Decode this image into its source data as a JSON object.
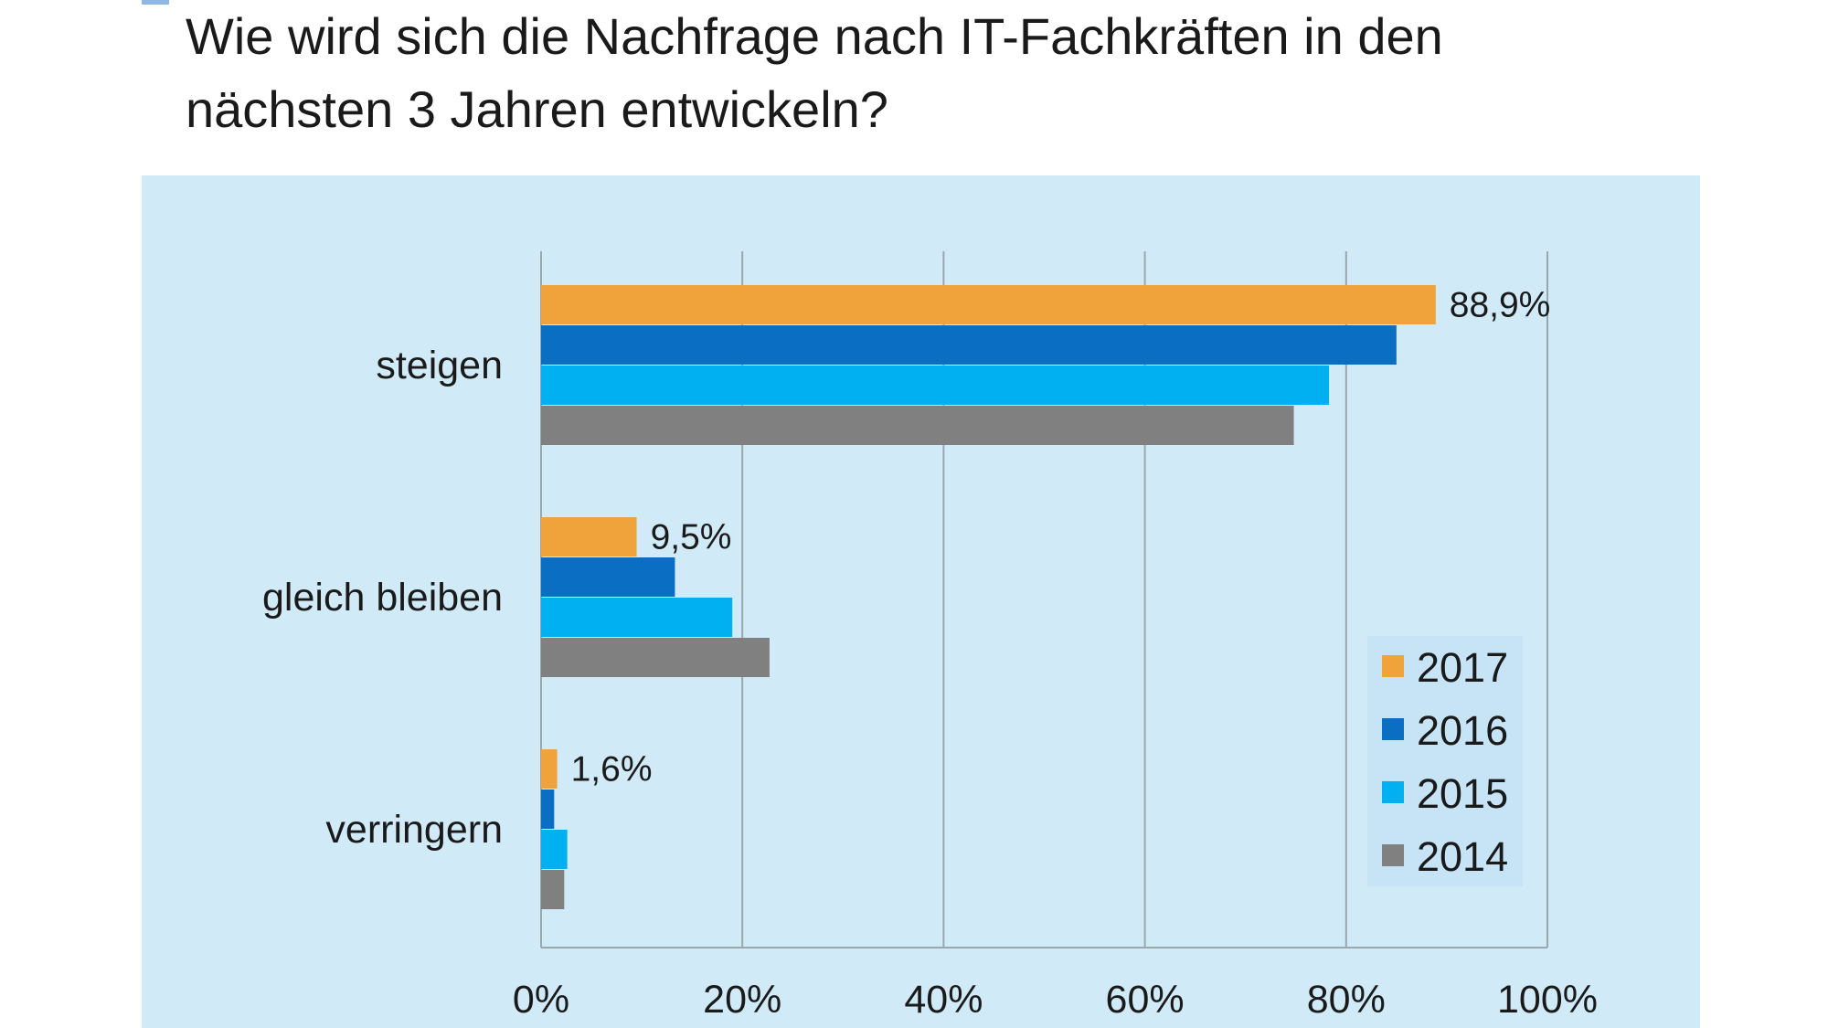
{
  "title_lines": [
    "Wie wird sich die Nachfrage nach IT-Fachkräften in den",
    "nächsten 3 Jahren entwickeln?"
  ],
  "chart_data": {
    "type": "bar",
    "orientation": "horizontal",
    "categories": [
      "steigen",
      "gleich bleiben",
      "verringern"
    ],
    "series": [
      {
        "name": "2017",
        "color": "#f0a33a",
        "values": [
          88.9,
          9.5,
          1.6
        ],
        "labels": [
          "88,9%",
          "9,5%",
          "1,6%"
        ]
      },
      {
        "name": "2016",
        "color": "#0a6fc2",
        "values": [
          85.0,
          13.3,
          1.3
        ],
        "labels": [
          "",
          "",
          ""
        ]
      },
      {
        "name": "2015",
        "color": "#00b0f0",
        "values": [
          78.3,
          19.0,
          2.6
        ],
        "labels": [
          "",
          "",
          ""
        ]
      },
      {
        "name": "2014",
        "color": "#808080",
        "values": [
          74.8,
          22.7,
          2.3
        ],
        "labels": [
          "",
          "",
          ""
        ]
      }
    ],
    "xlim": [
      0,
      100
    ],
    "x_ticks": [
      "0%",
      "20%",
      "40%",
      "60%",
      "80%",
      "100%"
    ],
    "grid": true,
    "legend_position": "bottom-right"
  }
}
